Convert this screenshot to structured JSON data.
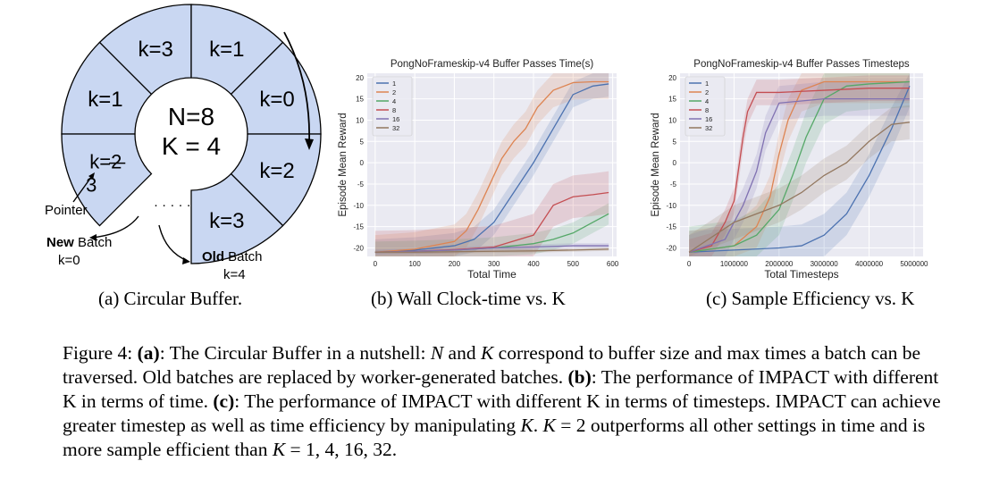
{
  "diagram": {
    "segments": [
      "k=3",
      "k=1",
      "k=0",
      "k=2",
      "k=3",
      "k=1"
    ],
    "edited_old": "k=2",
    "edited_new": "3",
    "center_line1": "N=8",
    "center_line2": "K = 4",
    "pointer_label": "Pointer",
    "dots": "· · · · ·",
    "new_batch_bold": "New",
    "new_batch_rest": " Batch",
    "new_batch_k": "k=0",
    "old_batch_bold": "Old",
    "old_batch_rest": " Batch",
    "old_batch_k": "k=4",
    "fill_color": "#c9d7f2"
  },
  "captions": {
    "a": "(a) Circular Buffer.",
    "b": "(b) Wall Clock-time vs. K",
    "c": "(c) Sample Efficiency vs. K"
  },
  "figure_caption": {
    "label": "Figure 4:",
    "a_tag": "(a)",
    "a_text1": ": The Circular Buffer in a nutshell: ",
    "a_N": "N",
    "a_text2": " and ",
    "a_K": "K",
    "a_text3": " correspond to buffer size and max times a batch can be traversed. Old batches are replaced by worker-generated batches. ",
    "b_tag": "(b)",
    "b_text": ": The performance of IMPACT with different K in terms of time. ",
    "c_tag": "(c)",
    "c_text1": ": The performance of IMPACT with different K in terms of timesteps. IMPACT can achieve greater timestep as well as time efficiency by manipulating ",
    "c_K1": "K",
    "c_text2": ". ",
    "c_K2": "K",
    "c_text3": " = 2 outperforms all other settings in time and is more sample efficient than ",
    "c_K3": "K",
    "c_text4": " = 1, 4, 16, 32."
  },
  "chart_data": [
    {
      "type": "line",
      "title": "PongNoFrameskip-v4 Buffer Passes Time(s)",
      "xlabel": "Total Time",
      "ylabel": "Episode Mean Reward",
      "xlim": [
        -20,
        610
      ],
      "ylim": [
        -22,
        21
      ],
      "xticks": [
        0,
        100,
        200,
        300,
        400,
        500,
        600
      ],
      "yticks": [
        -20,
        -15,
        -10,
        -5,
        0,
        5,
        10,
        15,
        20
      ],
      "grid": true,
      "legend_position": "top-left",
      "series": [
        {
          "name": "1",
          "color": "#4c72b0",
          "x": [
            0,
            100,
            200,
            250,
            300,
            350,
            400,
            450,
            500,
            550,
            590
          ],
          "y": [
            -21,
            -20.5,
            -19.5,
            -18,
            -14,
            -7,
            0,
            8,
            16,
            18,
            18.5
          ],
          "band": 3
        },
        {
          "name": "2",
          "color": "#dd8452",
          "x": [
            0,
            100,
            200,
            230,
            260,
            290,
            320,
            350,
            380,
            410,
            450,
            500,
            550,
            590
          ],
          "y": [
            -21,
            -20.3,
            -18.5,
            -16,
            -11,
            -5,
            1,
            5,
            8,
            13,
            17,
            18.8,
            19,
            19
          ],
          "band": 4
        },
        {
          "name": "4",
          "color": "#55a868",
          "x": [
            0,
            100,
            200,
            300,
            400,
            450,
            500,
            550,
            590
          ],
          "y": [
            -21,
            -20.8,
            -20.5,
            -20,
            -19,
            -18,
            -16.5,
            -14,
            -12
          ],
          "band": 2.5
        },
        {
          "name": "8",
          "color": "#c44e52",
          "x": [
            0,
            100,
            200,
            300,
            400,
            450,
            500,
            550,
            590
          ],
          "y": [
            -21,
            -20.8,
            -20.4,
            -19.8,
            -17,
            -10,
            -8,
            -7.5,
            -7
          ],
          "band": 5
        },
        {
          "name": "16",
          "color": "#8172b2",
          "x": [
            0,
            100,
            200,
            300,
            400,
            500,
            590
          ],
          "y": [
            -21,
            -20.8,
            -20.5,
            -20,
            -19.8,
            -19.5,
            -19.5
          ],
          "band": 0.6
        },
        {
          "name": "32",
          "color": "#937860",
          "x": [
            0,
            100,
            200,
            300,
            400,
            500,
            590
          ],
          "y": [
            -21,
            -21,
            -20.9,
            -20.8,
            -20.7,
            -20.5,
            -20.3
          ],
          "band": 0.4
        }
      ]
    },
    {
      "type": "line",
      "title": "PongNoFrameskip-v4 Buffer Passes Timesteps",
      "xlabel": "Total Timesteps",
      "ylabel": "Episode Mean Reward",
      "xlim": [
        -200000,
        5200000
      ],
      "ylim": [
        -22,
        21
      ],
      "xticks": [
        0,
        1000000,
        2000000,
        3000000,
        4000000,
        5000000
      ],
      "xtick_labels": [
        "0",
        "1000000",
        "2000000",
        "3000000",
        "4000000",
        "5000000"
      ],
      "yticks": [
        -20,
        -15,
        -10,
        -5,
        0,
        5,
        10,
        15,
        20
      ],
      "grid": true,
      "legend_position": "top-left",
      "series": [
        {
          "name": "1",
          "color": "#4c72b0",
          "x": [
            0,
            1000000,
            2000000,
            2500000,
            3000000,
            3500000,
            4000000,
            4500000,
            4900000
          ],
          "y": [
            -21,
            -20.5,
            -20,
            -19.5,
            -17,
            -12,
            -3,
            8,
            18
          ],
          "band": 5
        },
        {
          "name": "2",
          "color": "#dd8452",
          "x": [
            0,
            1000000,
            1500000,
            1800000,
            2000000,
            2200000,
            2500000,
            3000000,
            3500000,
            4000000,
            4900000
          ],
          "y": [
            -21,
            -19.5,
            -15,
            -8,
            2,
            10,
            17,
            19,
            19,
            19,
            19
          ],
          "band": 5
        },
        {
          "name": "4",
          "color": "#55a868",
          "x": [
            0,
            1000000,
            1500000,
            2000000,
            2300000,
            2600000,
            3000000,
            3500000,
            4000000,
            4900000
          ],
          "y": [
            -21,
            -19.5,
            -17,
            -11,
            -3,
            6,
            15,
            18,
            18.5,
            19
          ],
          "band": 6
        },
        {
          "name": "8",
          "color": "#c44e52",
          "x": [
            0,
            500000,
            800000,
            1000000,
            1200000,
            1300000,
            1500000,
            1700000,
            2000000,
            3000000,
            4000000,
            4900000
          ],
          "y": [
            -21,
            -19.5,
            -14,
            -9,
            6,
            12,
            16.5,
            16.5,
            16.5,
            17,
            17.5,
            17.5
          ],
          "band": 3
        },
        {
          "name": "16",
          "color": "#8172b2",
          "x": [
            0,
            800000,
            1000000,
            1200000,
            1500000,
            1700000,
            2000000,
            2500000,
            3000000,
            4000000,
            4900000
          ],
          "y": [
            -21,
            -18,
            -14,
            -10,
            -2,
            7,
            14,
            14.5,
            15,
            15,
            15
          ],
          "band": 4
        },
        {
          "name": "32",
          "color": "#937860",
          "x": [
            0,
            1000000,
            2000000,
            2500000,
            3000000,
            3500000,
            4000000,
            4500000,
            4900000
          ],
          "y": [
            -21,
            -14,
            -10,
            -7,
            -3,
            0,
            5,
            9,
            9.5
          ],
          "band": 4
        }
      ]
    }
  ]
}
